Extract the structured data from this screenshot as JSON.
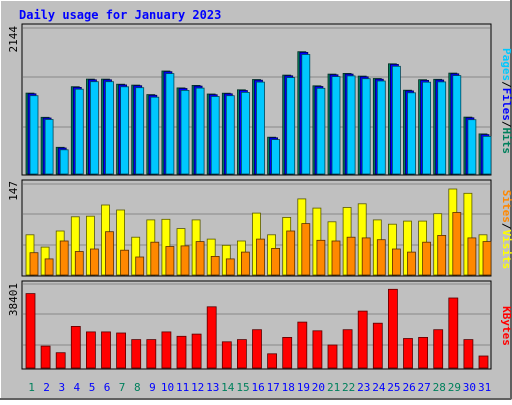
{
  "chart_data": {
    "type": "bar",
    "title": "Daily usage for January 2023",
    "days": [
      "1",
      "2",
      "3",
      "4",
      "5",
      "6",
      "7",
      "8",
      "9",
      "10",
      "11",
      "12",
      "13",
      "14",
      "15",
      "16",
      "17",
      "18",
      "19",
      "20",
      "21",
      "22",
      "23",
      "24",
      "25",
      "26",
      "27",
      "28",
      "29",
      "30",
      "31"
    ],
    "weekend_days": [
      "1",
      "7",
      "8",
      "14",
      "15",
      "21",
      "22",
      "28",
      "29"
    ],
    "panels": [
      {
        "id": "hits-panel",
        "max_label": "2144",
        "max_value": 2144,
        "series": [
          {
            "name": "Hits",
            "color": "#00805c",
            "values": [
              1188,
              833,
              392,
              1282,
              1394,
              1394,
              1318,
              1306,
              1166,
              1512,
              1265,
              1301,
              1175,
              1187,
              1236,
              1387,
              541,
              1452,
              1796,
              1295,
              1467,
              1477,
              1438,
              1402,
              1619,
              1230,
              1385,
              1390,
              1482,
              835,
              589
            ]
          },
          {
            "name": "Files",
            "color": "#0000ff",
            "values": [
              1178,
              823,
              382,
              1272,
              1384,
              1384,
              1308,
              1296,
              1156,
              1502,
              1255,
              1291,
              1165,
              1177,
              1226,
              1377,
              531,
              1442,
              1786,
              1285,
              1457,
              1467,
              1428,
              1392,
              1609,
              1220,
              1375,
              1380,
              1472,
              825,
              579
            ]
          },
          {
            "name": "Pages",
            "color": "#00c8ff",
            "values": [
              1150,
              800,
              355,
              1245,
              1355,
              1355,
              1280,
              1268,
              1128,
              1475,
              1228,
              1262,
              1138,
              1150,
              1198,
              1350,
              505,
              1415,
              1755,
              1258,
              1430,
              1440,
              1400,
              1365,
              1582,
              1193,
              1348,
              1352,
              1445,
              798,
              552
            ]
          }
        ]
      },
      {
        "id": "visits-panel",
        "max_label": "147",
        "max_value": 147,
        "series": [
          {
            "name": "Visits",
            "color": "#ffff00",
            "values": [
              65,
              45,
              71,
              94,
              95,
              113,
              105,
              61,
              89,
              90,
              75,
              89,
              58,
              48,
              55,
              100,
              65,
              93,
              123,
              108,
              86,
              109,
              115,
              89,
              82,
              87,
              87,
              99,
              139,
              132,
              65
            ]
          },
          {
            "name": "Sites",
            "color": "#ff8800",
            "values": [
              36,
              26,
              55,
              38,
              42,
              70,
              40,
              29,
              53,
              46,
              47,
              54,
              30,
              26,
              37,
              58,
              43,
              71,
              83,
              56,
              55,
              61,
              60,
              57,
              42,
              37,
              53,
              64,
              101,
              60,
              54
            ]
          }
        ]
      },
      {
        "id": "kbytes-panel",
        "max_label": "38401",
        "max_value": 38401,
        "series": [
          {
            "name": "KBytes",
            "color": "#ff0000",
            "values": [
              34000,
              10000,
              7000,
              19000,
              16500,
              16500,
              16000,
              13000,
              13000,
              16500,
              14500,
              15500,
              28000,
              12000,
              13000,
              17500,
              6500,
              14000,
              21000,
              17000,
              10500,
              17500,
              26000,
              20500,
              36000,
              13500,
              14000,
              17500,
              32000,
              13000,
              5500
            ]
          }
        ]
      }
    ],
    "right_labels": [
      {
        "panel": "hits-panel",
        "parts": [
          {
            "text": "Pages",
            "color": "#00c8ff"
          },
          {
            "text": "/",
            "color": "#000000"
          },
          {
            "text": "Files",
            "color": "#0000ff"
          },
          {
            "text": "/",
            "color": "#000000"
          },
          {
            "text": "Hits",
            "color": "#00805c"
          }
        ]
      },
      {
        "panel": "visits-panel",
        "parts": [
          {
            "text": "Sites",
            "color": "#ff8800"
          },
          {
            "text": "/",
            "color": "#000000"
          },
          {
            "text": "Visits",
            "color": "#ffff00"
          }
        ]
      },
      {
        "panel": "kbytes-panel",
        "parts": [
          {
            "text": "KBytes",
            "color": "#ff0000"
          }
        ]
      }
    ],
    "colors": {
      "background": "#c0c0c0",
      "title": "#0000ff",
      "weekday_label": "#0000ff",
      "weekend_label": "#00805c",
      "gridline": "#888888"
    },
    "grid": true
  }
}
